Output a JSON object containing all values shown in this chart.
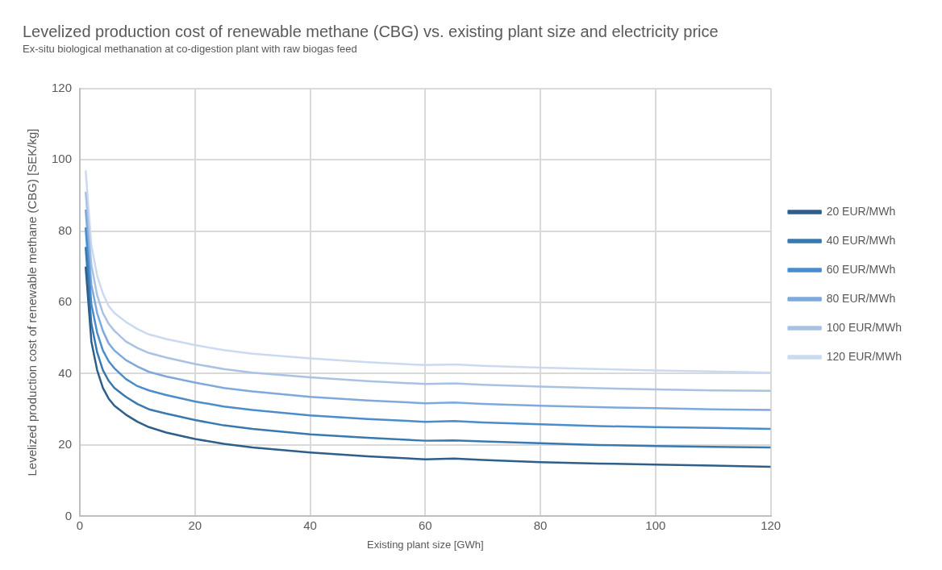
{
  "chart_data": {
    "type": "line",
    "title": "Levelized production cost of renewable methane (CBG) vs. existing plant size and electricity price",
    "subtitle": "Ex-situ biological methanation at co-digestion plant with raw biogas feed",
    "xlabel": "Existing plant size [GWh]",
    "ylabel": "Levelized production cost of renewable methane (CBG) [SEK/kg]",
    "x": [
      1,
      2,
      3,
      4,
      5,
      6,
      8,
      10,
      12,
      15,
      20,
      25,
      30,
      40,
      50,
      60,
      65,
      70,
      80,
      90,
      100,
      110,
      120
    ],
    "series": [
      {
        "name": "20 EUR/MWh",
        "color": "#2e5f8a",
        "values": [
          70,
          49,
          41,
          36,
          33,
          31,
          28.5,
          26.5,
          25,
          23.5,
          21.7,
          20.3,
          19.3,
          17.9,
          16.8,
          16,
          16.2,
          15.8,
          15.2,
          14.8,
          14.5,
          14.2,
          13.9
        ]
      },
      {
        "name": "40 EUR/MWh",
        "color": "#3a78b0",
        "values": [
          75.5,
          54,
          46,
          41,
          38,
          36,
          33.5,
          31.5,
          30,
          28.8,
          27,
          25.5,
          24.5,
          23,
          22,
          21.2,
          21.3,
          21,
          20.5,
          20,
          19.7,
          19.5,
          19.3
        ]
      },
      {
        "name": "60 EUR/MWh",
        "color": "#4a8ccc",
        "values": [
          81,
          59.5,
          51.5,
          46.5,
          43.5,
          41.5,
          38.5,
          36.5,
          35.3,
          34,
          32.2,
          30.8,
          29.8,
          28.3,
          27.3,
          26.5,
          26.7,
          26.3,
          25.8,
          25.3,
          25,
          24.8,
          24.5
        ]
      },
      {
        "name": "80 EUR/MWh",
        "color": "#7fa9dc",
        "values": [
          86,
          65,
          57,
          52,
          48.5,
          46.5,
          43.8,
          42,
          40.5,
          39.2,
          37.5,
          36,
          35,
          33.5,
          32.5,
          31.7,
          31.9,
          31.5,
          31,
          30.6,
          30.3,
          30,
          29.8
        ]
      },
      {
        "name": "100 EUR/MWh",
        "color": "#a9c2e4",
        "values": [
          91,
          70.5,
          62,
          57,
          54,
          52,
          49,
          47.2,
          45.8,
          44.5,
          42.7,
          41.3,
          40.3,
          39,
          37.9,
          37.1,
          37.3,
          36.9,
          36.4,
          35.9,
          35.6,
          35.3,
          35.2
        ]
      },
      {
        "name": "120 EUR/MWh",
        "color": "#cbdaf0",
        "values": [
          97,
          76,
          67.5,
          62.5,
          59,
          57,
          54.5,
          52.5,
          51,
          49.7,
          48,
          46.6,
          45.6,
          44.3,
          43.2,
          42.4,
          42.6,
          42.2,
          41.7,
          41.3,
          40.9,
          40.6,
          40.3
        ]
      }
    ],
    "xlim": [
      0,
      120
    ],
    "xticks": [
      0,
      20,
      40,
      60,
      80,
      100,
      120
    ],
    "ylim": [
      0,
      120
    ],
    "yticks": [
      0,
      20,
      40,
      60,
      80,
      100,
      120
    ],
    "grid": true,
    "legend": "right",
    "marker": "none",
    "line_style": "solid"
  }
}
